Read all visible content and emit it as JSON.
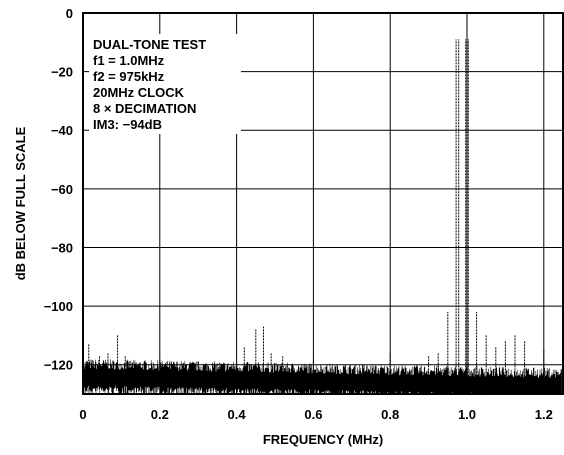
{
  "chart_data": {
    "type": "line",
    "title": "",
    "xlabel": "FREQUENCY (MHz)",
    "ylabel": "dB BELOW FULL SCALE",
    "xlim": [
      0,
      1.25
    ],
    "ylim": [
      -130,
      0
    ],
    "xticks": [
      0,
      0.2,
      0.4,
      0.6,
      0.8,
      1.0,
      1.2
    ],
    "xtick_labels": [
      "0",
      "0.2",
      "0.4",
      "0.6",
      "0.8",
      "1.0",
      "1.2"
    ],
    "yticks": [
      0,
      -20,
      -40,
      -60,
      -80,
      -100,
      -120
    ],
    "ytick_labels": [
      "0",
      "−20",
      "−40",
      "−60",
      "−80",
      "−100",
      "−120"
    ],
    "grid": true,
    "annotations": [
      "DUAL-TONE TEST",
      "f1 = 1.0MHz",
      "f2 = 975kHz",
      "20MHz CLOCK",
      "8 × DECIMATION",
      "IM3: −94dB"
    ],
    "noise_floor_db": -124,
    "tones": [
      {
        "x": 0.975,
        "y": -9
      },
      {
        "x": 1.0,
        "y": -9
      }
    ],
    "spurs": [
      {
        "x": 0.015,
        "y": -113
      },
      {
        "x": 0.043,
        "y": -117
      },
      {
        "x": 0.065,
        "y": -116
      },
      {
        "x": 0.09,
        "y": -110
      },
      {
        "x": 0.11,
        "y": -117
      },
      {
        "x": 0.2,
        "y": -118
      },
      {
        "x": 0.42,
        "y": -114
      },
      {
        "x": 0.45,
        "y": -108
      },
      {
        "x": 0.47,
        "y": -107
      },
      {
        "x": 0.49,
        "y": -116
      },
      {
        "x": 0.52,
        "y": -117
      },
      {
        "x": 0.6,
        "y": -118
      },
      {
        "x": 0.8,
        "y": -116
      },
      {
        "x": 0.9,
        "y": -117
      },
      {
        "x": 0.925,
        "y": -116
      },
      {
        "x": 0.95,
        "y": -102
      },
      {
        "x": 1.025,
        "y": -102
      },
      {
        "x": 1.05,
        "y": -110
      },
      {
        "x": 1.075,
        "y": -114
      },
      {
        "x": 1.1,
        "y": -112
      },
      {
        "x": 1.125,
        "y": -110
      },
      {
        "x": 1.15,
        "y": -112
      },
      {
        "x": 1.2,
        "y": -115
      }
    ]
  }
}
